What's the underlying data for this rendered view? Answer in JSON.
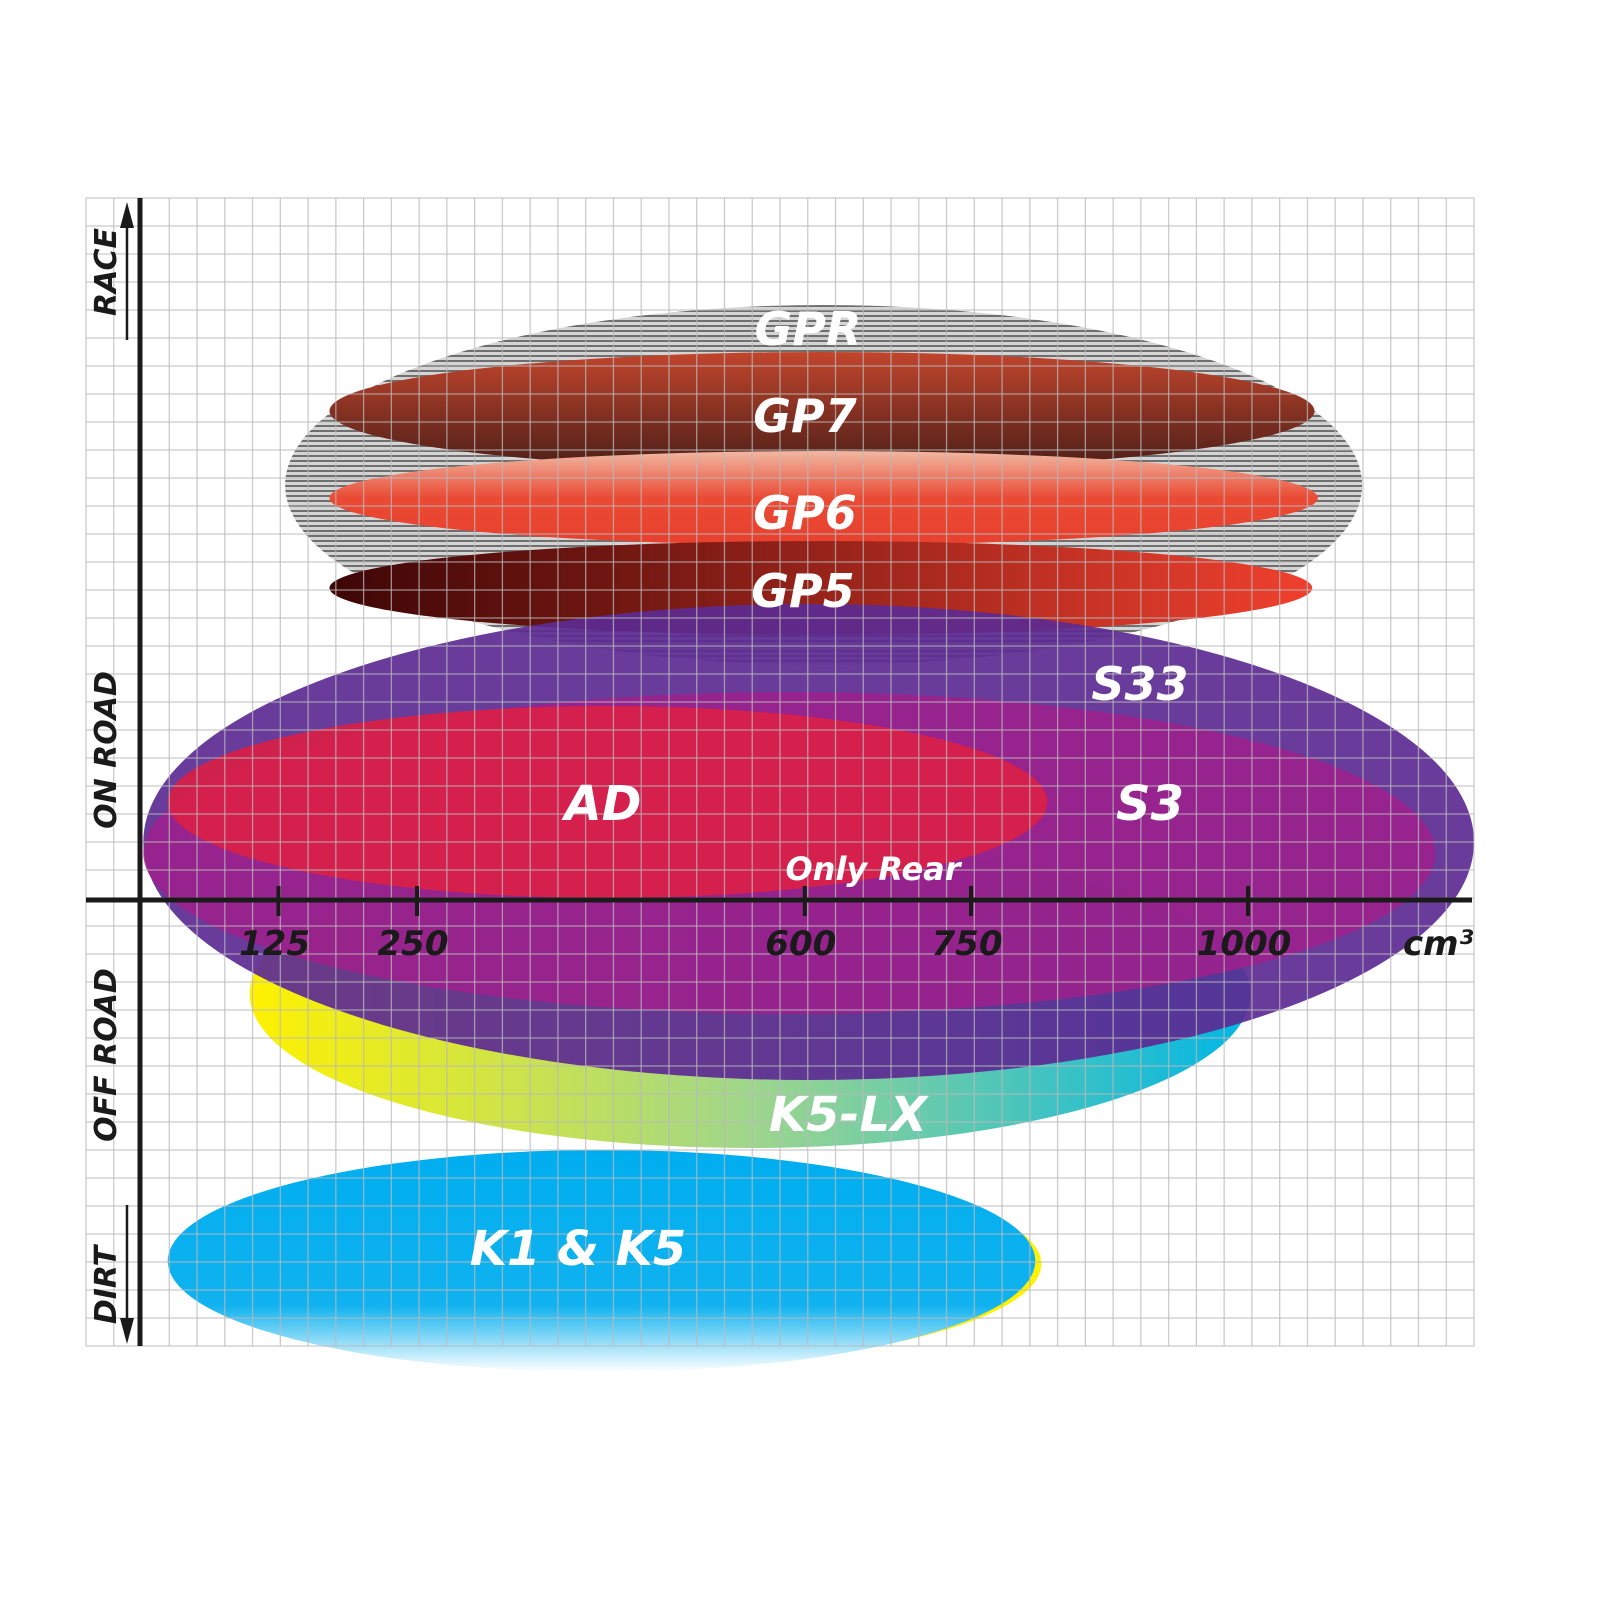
{
  "chart_data": {
    "type": "range-ellipse",
    "x_axis": {
      "unit_label": "cm³",
      "ticks": [
        125,
        250,
        600,
        750,
        1000
      ],
      "range": [
        0,
        1200
      ]
    },
    "y_axis": {
      "categories_bottom_to_top": [
        "DIRT",
        "OFF ROAD",
        "ON ROAD",
        "RACE"
      ]
    },
    "grid": true,
    "series": [
      {
        "name": "GPR",
        "x_range": [
          131,
          1103
        ],
        "color": "#9a9a9a",
        "pattern": "horizontal-stripes"
      },
      {
        "name": "GP7",
        "x_range": [
          171,
          1060
        ],
        "color": "#8a3a2a"
      },
      {
        "name": "GP6",
        "x_range": [
          171,
          1063
        ],
        "color": "#e8412f"
      },
      {
        "name": "GP5",
        "x_range": [
          171,
          1058
        ],
        "color": "#b0201a"
      },
      {
        "name": "S33",
        "x_range": [
          3,
          1204
        ],
        "color": "#5c2a92"
      },
      {
        "name": "S3",
        "x_range": [
          3,
          1169
        ],
        "color": "#a0208c"
      },
      {
        "name": "AD",
        "x_range": [
          25,
          819
        ],
        "color": "#dc1f45"
      },
      {
        "name": "K5-LX",
        "x_range": [
          99,
          1002
        ],
        "color": "#f5ee1a",
        "note_label": "Only Rear"
      },
      {
        "name": "K1 & K5",
        "x_range": [
          25,
          808
        ],
        "color": "#00aeef"
      }
    ]
  }
}
